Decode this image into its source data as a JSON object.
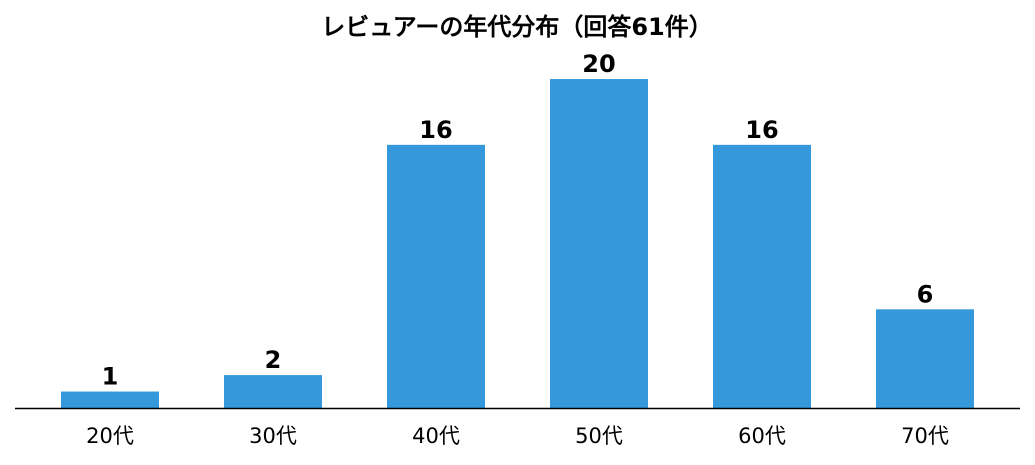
{
  "chart_data": {
    "type": "bar",
    "title": "レビュアーの年代分布（回答61件）",
    "categories": [
      "20代",
      "30代",
      "40代",
      "50代",
      "60代",
      "70代"
    ],
    "values": [
      1,
      2,
      16,
      20,
      16,
      6
    ],
    "color": "#3498db",
    "ylim": [
      0,
      21
    ]
  }
}
